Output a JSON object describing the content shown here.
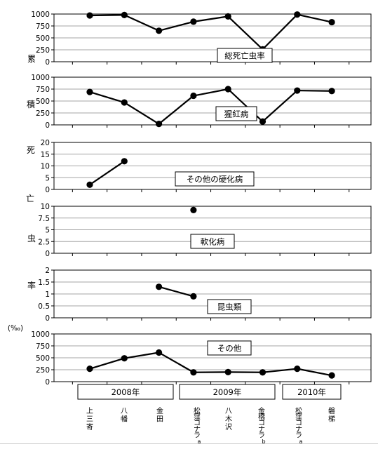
{
  "figure": {
    "y_label_chars": [
      "累",
      "積",
      "死",
      "亡",
      "虫",
      "率"
    ],
    "unit": "(‰)",
    "years": [
      "2008年",
      "2009年",
      "2010年"
    ],
    "sites": [
      "上三寄",
      "八幡",
      "金田",
      "松窪コナラa",
      "八木沢",
      "金橋コナラb",
      "松窪コナラa",
      "磐梯"
    ],
    "site_lines": [
      [
        "上",
        "三",
        "寄"
      ],
      [
        "八",
        "幡"
      ],
      [
        "金",
        "田"
      ],
      [
        "松",
        "窪",
        "コ",
        "ナ",
        "ラ",
        "a"
      ],
      [
        "八",
        "木",
        "沢"
      ],
      [
        "金",
        "橋",
        "コ",
        "ナ",
        "ラ",
        "b"
      ],
      [
        "松",
        "窪",
        "コ",
        "ナ",
        "ラ",
        "a"
      ],
      [
        "磐",
        "梯"
      ]
    ]
  },
  "chart_data": [
    {
      "type": "line",
      "title": "総死亡虫率",
      "ylim": [
        0,
        1000
      ],
      "yticks": [
        "0",
        "250",
        "500",
        "750",
        "1000"
      ],
      "categories": [
        "上三寄",
        "八幡",
        "金田",
        "松窪コナラa",
        "八木沢",
        "金橋コナラb",
        "松窪コナラa",
        "磐梯"
      ],
      "values": [
        970,
        980,
        650,
        840,
        950,
        260,
        990,
        830
      ],
      "grid": true
    },
    {
      "type": "line",
      "title": "猩紅病",
      "ylim": [
        0,
        1000
      ],
      "yticks": [
        "0",
        "250",
        "500",
        "750",
        "1000"
      ],
      "categories": [
        "上三寄",
        "八幡",
        "金田",
        "松窪コナラa",
        "八木沢",
        "金橋コナラb",
        "松窪コナラa",
        "磐梯"
      ],
      "values": [
        690,
        470,
        20,
        610,
        750,
        70,
        720,
        710
      ],
      "grid": true
    },
    {
      "type": "line",
      "title": "その他の硬化病",
      "ylim": [
        0,
        20
      ],
      "yticks": [
        "0",
        "5",
        "10",
        "15",
        "20"
      ],
      "categories": [
        "上三寄",
        "八幡",
        "金田",
        "松窪コナラa",
        "八木沢",
        "金橋コナラb",
        "松窪コナラa",
        "磐梯"
      ],
      "values": [
        2,
        12,
        null,
        null,
        null,
        null,
        null,
        null
      ],
      "grid": true
    },
    {
      "type": "line",
      "title": "軟化病",
      "ylim": [
        0,
        10
      ],
      "yticks": [
        "0",
        "2.5",
        "5",
        "7.5",
        "10"
      ],
      "categories": [
        "上三寄",
        "八幡",
        "金田",
        "松窪コナラa",
        "八木沢",
        "金橋コナラb",
        "松窪コナラa",
        "磐梯"
      ],
      "values": [
        null,
        null,
        null,
        9.2,
        null,
        null,
        null,
        null
      ],
      "grid": true
    },
    {
      "type": "line",
      "title": "昆虫類",
      "ylim": [
        0,
        2
      ],
      "yticks": [
        "0",
        "0.5",
        "1",
        "1.5",
        "2"
      ],
      "categories": [
        "上三寄",
        "八幡",
        "金田",
        "松窪コナラa",
        "八木沢",
        "金橋コナラb",
        "松窪コナラa",
        "磐梯"
      ],
      "values": [
        null,
        null,
        1.3,
        0.9,
        null,
        null,
        null,
        null
      ],
      "grid": true
    },
    {
      "type": "line",
      "title": "その他",
      "ylim": [
        0,
        1000
      ],
      "yticks": [
        "0",
        "250",
        "500",
        "750",
        "1000"
      ],
      "categories": [
        "上三寄",
        "八幡",
        "金田",
        "松窪コナラa",
        "八木沢",
        "金橋コナラb",
        "松窪コナラa",
        "磐梯"
      ],
      "values": [
        270,
        490,
        610,
        195,
        200,
        195,
        270,
        130
      ],
      "grid": true
    }
  ]
}
